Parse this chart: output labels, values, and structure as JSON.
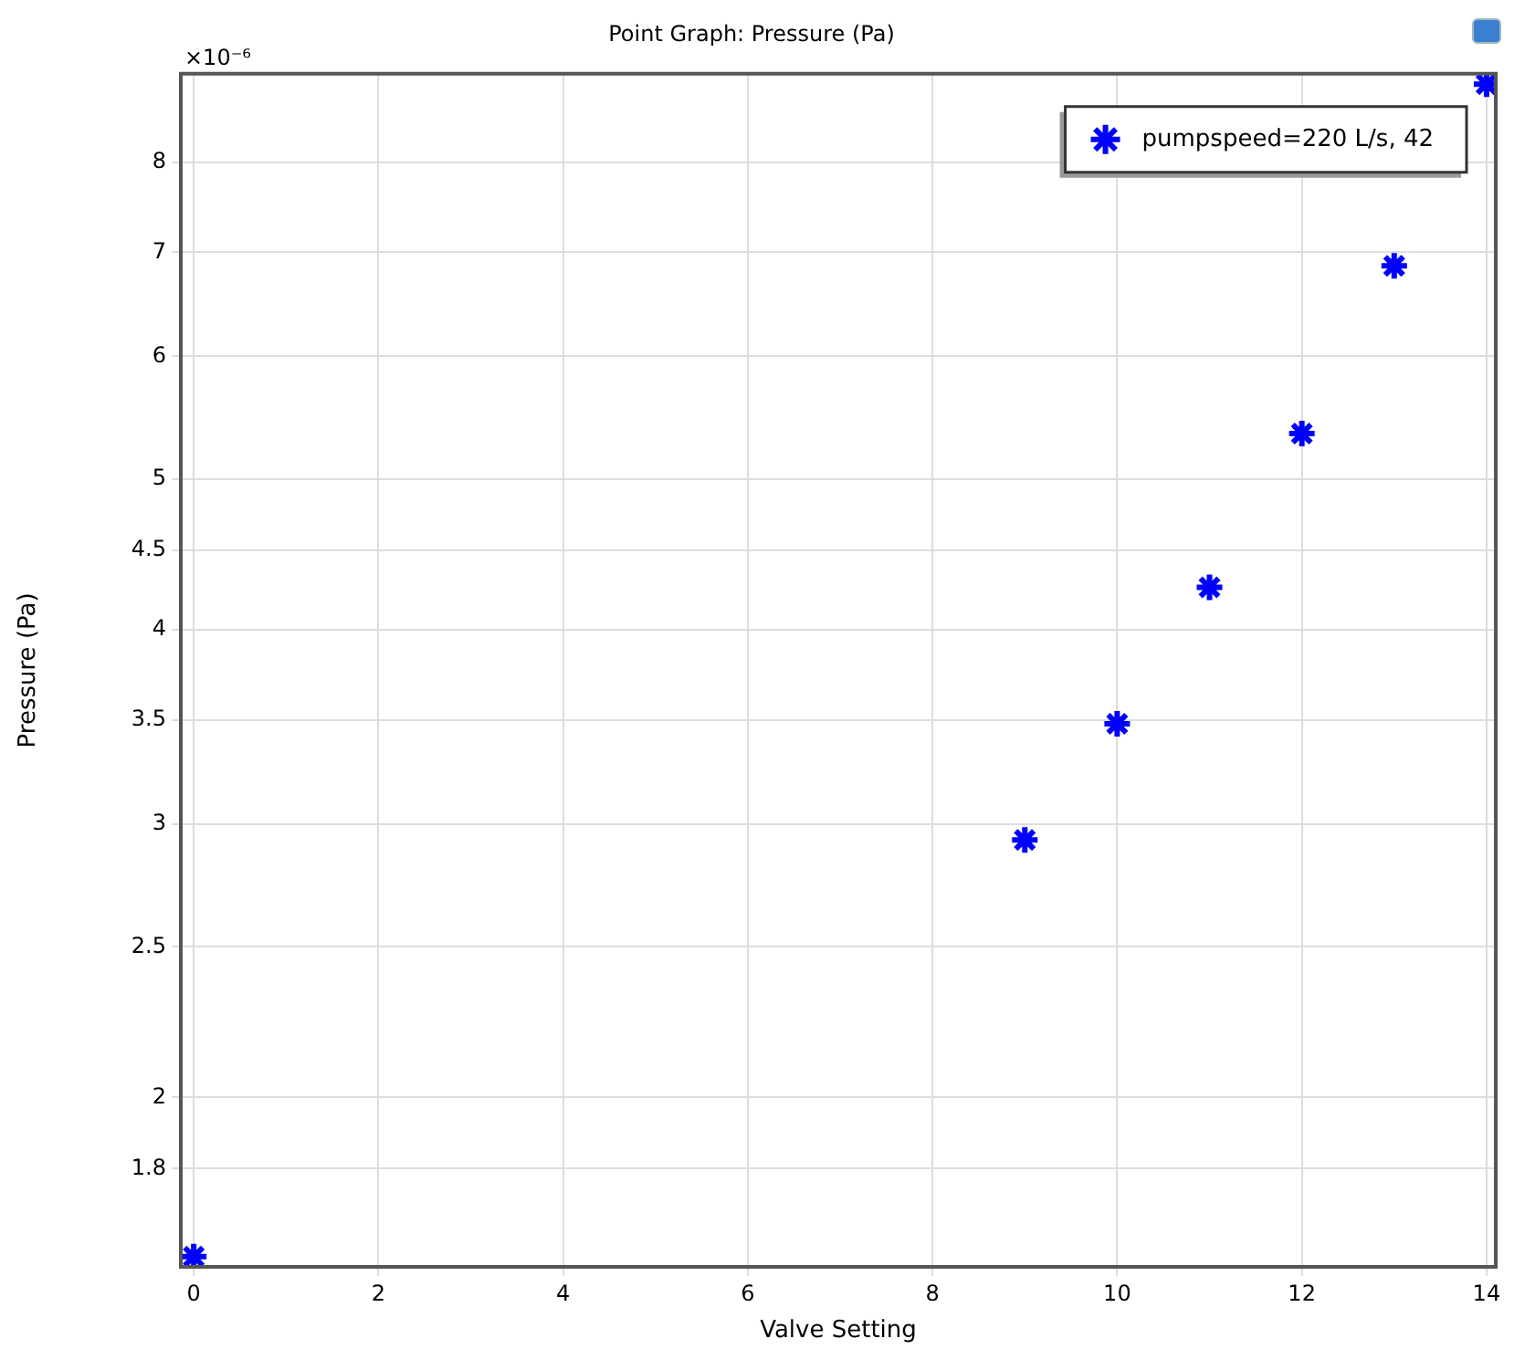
{
  "chart_data": {
    "type": "scatter",
    "title": "Point Graph: Pressure (Pa)",
    "xlabel": "Valve Setting",
    "ylabel": "Pressure (Pa)",
    "x": [
      0,
      9,
      10,
      11,
      12,
      13,
      14
    ],
    "series": [
      {
        "name": "pumpspeed=220 L/s, 42",
        "color": "#0000ff",
        "values": [
          1.58,
          2.93,
          3.48,
          4.26,
          5.35,
          6.86,
          8.98
        ]
      }
    ],
    "xlim": [
      -0.14,
      14.1
    ],
    "xticks": [
      0,
      2,
      4,
      6,
      8,
      10,
      12,
      14
    ],
    "ylim": [
      1.556,
      9.12
    ],
    "yticks": [
      1.8,
      2,
      2.5,
      3,
      3.5,
      4,
      4.5,
      5,
      6,
      7,
      8
    ],
    "log": "y",
    "grid": true,
    "legend": "top right",
    "marker": "cross",
    "annotations": [
      "×10⁻⁶"
    ]
  }
}
